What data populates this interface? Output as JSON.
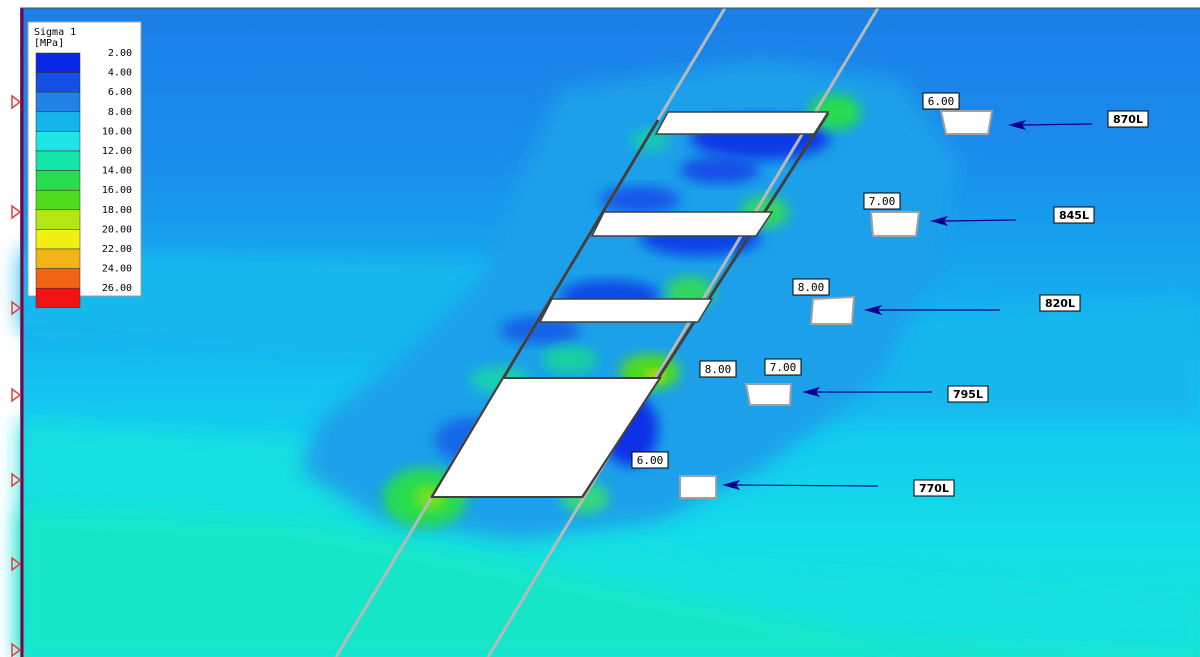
{
  "legend": {
    "title_line1": "Sigma 1",
    "title_line2": "[MPa]",
    "entries": [
      {
        "value": "2.00",
        "color": "#0a28e6"
      },
      {
        "value": "4.00",
        "color": "#1450e6"
      },
      {
        "value": "6.00",
        "color": "#1e82e6"
      },
      {
        "value": "8.00",
        "color": "#14b4ec"
      },
      {
        "value": "10.00",
        "color": "#1ee6e6"
      },
      {
        "value": "12.00",
        "color": "#14e6a8"
      },
      {
        "value": "14.00",
        "color": "#28dc50"
      },
      {
        "value": "16.00",
        "color": "#50dc1e"
      },
      {
        "value": "18.00",
        "color": "#b4e614"
      },
      {
        "value": "20.00",
        "color": "#f0f014"
      },
      {
        "value": "22.00",
        "color": "#f0b414"
      },
      {
        "value": "24.00",
        "color": "#f06414"
      },
      {
        "value": "26.00",
        "color": "#f01414"
      }
    ]
  },
  "contour_labels": [
    {
      "id": "870",
      "text": "6.00"
    },
    {
      "id": "845",
      "text": "7.00"
    },
    {
      "id": "820",
      "text": "8.00"
    },
    {
      "id": "795a",
      "text": "8.00"
    },
    {
      "id": "795b",
      "text": "7.00"
    },
    {
      "id": "770",
      "text": "6.00"
    }
  ],
  "level_labels": [
    {
      "id": "870",
      "text": "870L"
    },
    {
      "id": "845",
      "text": "845L"
    },
    {
      "id": "820",
      "text": "820L"
    },
    {
      "id": "795",
      "text": "795L"
    },
    {
      "id": "770",
      "text": "770L"
    }
  ],
  "colors": {
    "background_low": "#1e8ef0",
    "background_mid": "#14c8f0",
    "background_high": "#14e6d8",
    "excavation": "#ffffff",
    "boundary": "#800040",
    "arrow": "#00008b",
    "support_marker": "#e04040"
  }
}
